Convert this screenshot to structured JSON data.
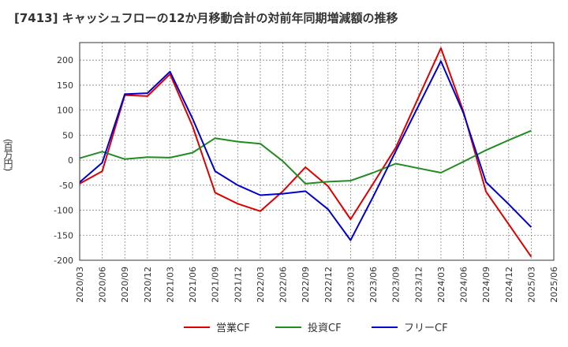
{
  "chart_data": {
    "type": "line",
    "title": "[7413]  キャッシュフローの12か月移動合計の対前年同期増減額の推移",
    "ylabel": "(百万円)",
    "xlabel": "",
    "ylim": [
      -200,
      235
    ],
    "yticks": [
      -200,
      -150,
      -100,
      -50,
      0,
      50,
      100,
      150,
      200
    ],
    "categories": [
      "2020/03",
      "2020/06",
      "2020/09",
      "2020/12",
      "2021/03",
      "2021/06",
      "2021/09",
      "2021/12",
      "2022/03",
      "2022/06",
      "2022/09",
      "2022/12",
      "2023/03",
      "2023/06",
      "2023/09",
      "2023/12",
      "2024/03",
      "2024/06",
      "2024/09",
      "2024/12",
      "2025/03",
      "2025/06"
    ],
    "series": [
      {
        "name": "営業CF",
        "color": "#dd0000",
        "values": [
          -47,
          -22,
          130,
          128,
          172,
          68,
          -65,
          -87,
          -102,
          -62,
          -14,
          -52,
          -118,
          -47,
          25,
          125,
          224,
          97,
          -63,
          -128,
          -193,
          null
        ]
      },
      {
        "name": "投資CF",
        "color": "#228b22",
        "values": [
          4,
          17,
          2,
          6,
          5,
          15,
          44,
          37,
          33,
          -2,
          -47,
          -43,
          -41,
          -25,
          -7,
          -16,
          -25,
          -3,
          20,
          40,
          59,
          null
        ]
      },
      {
        "name": "フリーCF",
        "color": "#0000cc",
        "values": [
          -44,
          -5,
          132,
          134,
          177,
          83,
          -22,
          -50,
          -70,
          -67,
          -62,
          -98,
          -160,
          -73,
          18,
          108,
          198,
          94,
          -44,
          -88,
          -134,
          null
        ]
      }
    ]
  }
}
